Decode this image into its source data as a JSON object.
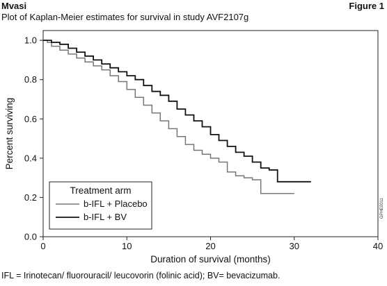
{
  "header": {
    "brand": "Mvasi",
    "figure_label": "Figure 1",
    "subtitle": "Plot of Kaplan-Meier estimates for survival in study AVF2107g"
  },
  "footnote": "IFL = Irinotecan/ fluorouracil/ leucovorin (folinic acid); BV= bevacizumab.",
  "side_code": "GPHE0011",
  "colors": {
    "placebo": "#777777",
    "bv": "#111111",
    "axis": "#222222"
  },
  "chart_data": {
    "type": "line",
    "title": "",
    "xlabel": "Duration of survival (months)",
    "ylabel": "Percent surviving",
    "xlim": [
      0,
      40
    ],
    "ylim": [
      0,
      1.05
    ],
    "xticks": [
      0,
      10,
      20,
      30,
      40
    ],
    "yticks": [
      0.0,
      0.2,
      0.4,
      0.6,
      0.8,
      1.0
    ],
    "ytick_labels": [
      "0.0",
      "0.2",
      "0.4",
      "0.6",
      "0.8",
      "1.0"
    ],
    "grid": false,
    "legend": {
      "title": "Treatment arm",
      "placement": "bottom-left",
      "entries": [
        "b-IFL + Placebo",
        "b-IFL + BV"
      ]
    },
    "series": [
      {
        "name": "b-IFL + Placebo",
        "color": "#777777",
        "step": true,
        "x": [
          0,
          0.5,
          1,
          2,
          3,
          4,
          5,
          6,
          7,
          8,
          9,
          10,
          11,
          12,
          13,
          14,
          15,
          16,
          17,
          18,
          19,
          20,
          21,
          22,
          23,
          24,
          25,
          26,
          27,
          28,
          30
        ],
        "y": [
          1.0,
          0.99,
          0.97,
          0.95,
          0.93,
          0.91,
          0.89,
          0.87,
          0.85,
          0.82,
          0.79,
          0.75,
          0.71,
          0.67,
          0.63,
          0.59,
          0.55,
          0.51,
          0.47,
          0.44,
          0.42,
          0.4,
          0.38,
          0.33,
          0.31,
          0.3,
          0.29,
          0.22,
          0.22,
          0.22,
          0.22
        ]
      },
      {
        "name": "b-IFL + BV",
        "color": "#111111",
        "step": true,
        "x": [
          0,
          0.5,
          1,
          2,
          3,
          4,
          5,
          6,
          7,
          8,
          9,
          10,
          11,
          12,
          13,
          14,
          15,
          16,
          17,
          18,
          19,
          20,
          21,
          22,
          23,
          24,
          25,
          26,
          27,
          28,
          30,
          32
        ],
        "y": [
          1.0,
          1.0,
          0.99,
          0.98,
          0.96,
          0.94,
          0.92,
          0.9,
          0.88,
          0.86,
          0.84,
          0.82,
          0.8,
          0.77,
          0.74,
          0.72,
          0.69,
          0.65,
          0.62,
          0.59,
          0.56,
          0.52,
          0.49,
          0.46,
          0.43,
          0.41,
          0.38,
          0.35,
          0.34,
          0.28,
          0.28,
          0.28
        ]
      }
    ]
  }
}
